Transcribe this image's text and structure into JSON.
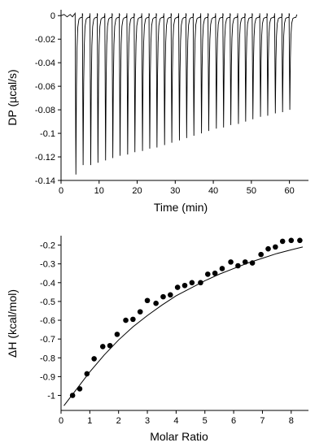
{
  "chart_data": [
    {
      "type": "line",
      "title": "",
      "xlabel": "Time (min)",
      "ylabel": "DP (µcal/s)",
      "xlim": [
        0,
        65
      ],
      "ylim": [
        -0.14,
        0.005
      ],
      "xticks": [
        0,
        10,
        20,
        30,
        40,
        50,
        60
      ],
      "yticks": [
        0,
        -0.02,
        -0.04,
        -0.06,
        -0.08,
        -0.1,
        -0.12,
        -0.14
      ],
      "injection_times": [
        3.9,
        5.8,
        7.8,
        9.7,
        11.7,
        13.6,
        15.5,
        17.5,
        19.4,
        21.4,
        23.3,
        25.2,
        27.2,
        29.1,
        31.1,
        33.0,
        34.9,
        36.9,
        38.8,
        40.8,
        42.7,
        44.6,
        46.6,
        48.5,
        50.4,
        52.4,
        54.3,
        56.3,
        58.2,
        60.1
      ],
      "peak_minima": [
        -0.135,
        -0.127,
        -0.127,
        -0.125,
        -0.123,
        -0.121,
        -0.119,
        -0.118,
        -0.116,
        -0.115,
        -0.113,
        -0.112,
        -0.11,
        -0.108,
        -0.106,
        -0.104,
        -0.102,
        -0.1,
        -0.098,
        -0.096,
        -0.095,
        -0.093,
        -0.092,
        -0.09,
        -0.088,
        -0.086,
        -0.085,
        -0.083,
        -0.082,
        -0.08
      ],
      "baseline": 0,
      "trace_end": 62
    },
    {
      "type": "scatter",
      "title": "",
      "xlabel": "Molar Ratio",
      "ylabel": "ΔH (kcal/mol)",
      "xlim": [
        0,
        8.6
      ],
      "ylim": [
        -1.08,
        -0.15
      ],
      "xticks": [
        0,
        1,
        2,
        3,
        4,
        5,
        6,
        7,
        8
      ],
      "yticks": [
        -0.2,
        -0.3,
        -0.4,
        -0.5,
        -0.6,
        -0.7,
        -0.8,
        -0.9,
        -1
      ],
      "series": [
        {
          "x": [
            0.4,
            0.65,
            0.9,
            1.15,
            1.45,
            1.7,
            1.95,
            2.25,
            2.5,
            2.75,
            3.0,
            3.3,
            3.55,
            3.8,
            4.05,
            4.3,
            4.55,
            4.85,
            5.1,
            5.35,
            5.6,
            5.9,
            6.15,
            6.4,
            6.65,
            6.95,
            7.2,
            7.45,
            7.7,
            8.0,
            8.3
          ],
          "y": [
            -1.0,
            -0.965,
            -0.885,
            -0.805,
            -0.74,
            -0.735,
            -0.675,
            -0.6,
            -0.595,
            -0.555,
            -0.495,
            -0.51,
            -0.475,
            -0.465,
            -0.425,
            -0.415,
            -0.4,
            -0.4,
            -0.355,
            -0.35,
            -0.325,
            -0.29,
            -0.31,
            -0.29,
            -0.295,
            -0.25,
            -0.22,
            -0.21,
            -0.18,
            -0.175,
            -0.175
          ]
        }
      ],
      "fit": {
        "x": [
          0.1,
          0.5,
          1.0,
          1.5,
          2.0,
          2.5,
          3.0,
          3.5,
          4.0,
          4.5,
          5.0,
          5.5,
          6.0,
          6.5,
          7.0,
          7.5,
          8.0,
          8.4
        ],
        "y": [
          -1.055,
          -0.975,
          -0.875,
          -0.785,
          -0.705,
          -0.635,
          -0.575,
          -0.52,
          -0.47,
          -0.43,
          -0.39,
          -0.355,
          -0.325,
          -0.295,
          -0.27,
          -0.245,
          -0.225,
          -0.21
        ]
      }
    }
  ]
}
